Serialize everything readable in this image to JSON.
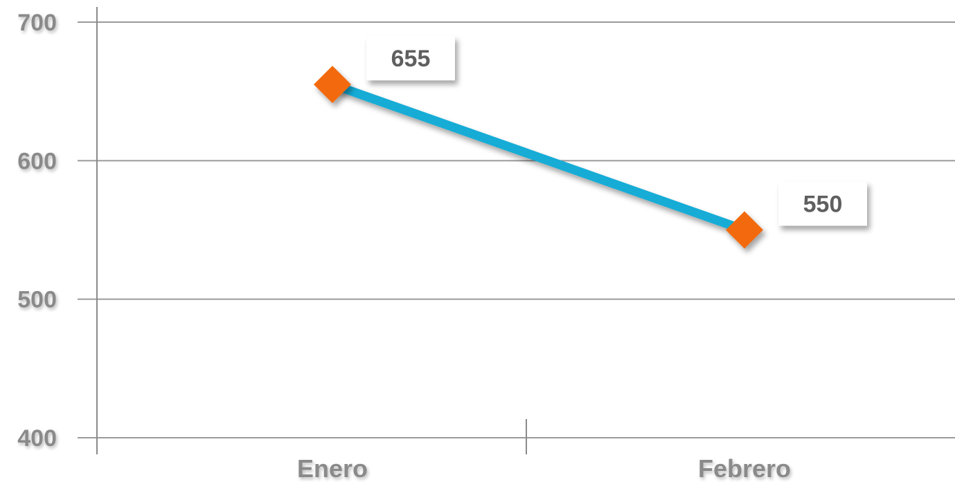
{
  "chart_data": {
    "type": "line",
    "categories": [
      "Enero",
      "Febrero"
    ],
    "series": [
      {
        "values": [
          655,
          550
        ]
      }
    ],
    "y_ticks": [
      400,
      500,
      600,
      700
    ],
    "ylim": [
      400,
      700
    ],
    "title": "",
    "xlabel": "",
    "ylabel": "",
    "grid": true,
    "legend": "none",
    "data_labels": [
      "655",
      "550"
    ],
    "colors": {
      "line": "#12acd6",
      "marker": "#f26b0f",
      "grid": "#9a9a9a",
      "axis": "#8a8a8a",
      "tick_label": "#8a8a8a",
      "data_label": "#5f5f5f"
    }
  }
}
